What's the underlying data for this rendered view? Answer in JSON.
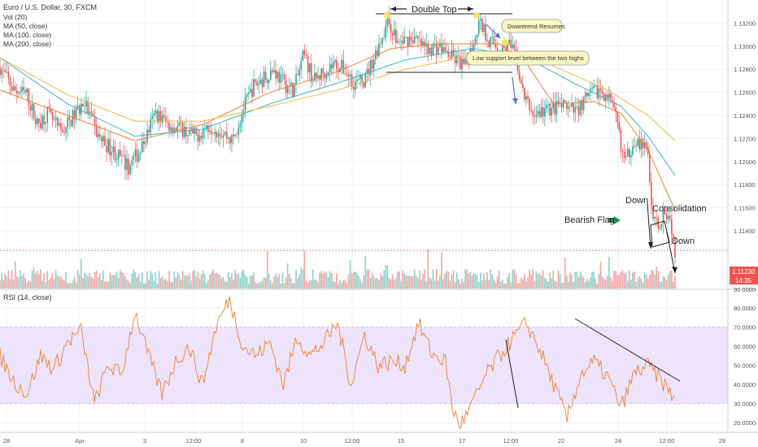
{
  "header": {
    "symbol_title": "Euro / U.S. Dollar, 30, FXCM",
    "indicators": [
      "Vol (20)",
      "MA (50, close)",
      "MA (100, close)",
      "MA (200, close)"
    ]
  },
  "rsi_header": "RSI (14, close)",
  "colors": {
    "candle_up": "#26a69a",
    "candle_down": "#ef5350",
    "vol_up": "#8fd1c9",
    "vol_down": "#f4a3a1",
    "ma50": "#f07f2e",
    "ma100": "#3bb3c3",
    "ma200": "#f5b546",
    "rsi_line": "#f07f2e",
    "rsi_band": "#ede4fb",
    "price_badge": "#ef5350",
    "grid": "#eef0f3",
    "axis_text": "#555555"
  },
  "price_badge": {
    "price": "1.11230",
    "countdown": "14:35"
  },
  "annotations": {
    "double_top": "Double Top",
    "downtrend": "Downtrend Resumes",
    "low_support": "Low support level between the two highs",
    "bearish_flag": "Bearish Flag",
    "down1": "Down",
    "consolidation": "Consolidation",
    "down2": "Down"
  },
  "chart_data": [
    {
      "type": "candlestick",
      "title": "Euro / U.S. Dollar, 30, FXCM",
      "y_ticks": [
        "1.13200",
        "1.13000",
        "1.12800",
        "1.12600",
        "1.12400",
        "1.12200",
        "1.12000",
        "1.11800",
        "1.11600",
        "1.11400"
      ],
      "ylim": [
        1.109,
        1.134
      ],
      "x_ticks": [
        "28",
        "Apr",
        "3",
        "12:00",
        "8",
        "10",
        "12:00",
        "15",
        "17",
        "12:00",
        "22",
        "24",
        "12:00",
        "29"
      ],
      "grid": true,
      "close_path": [
        [
          0,
          1.1282
        ],
        [
          0.02,
          1.1262
        ],
        [
          0.04,
          1.1258
        ],
        [
          0.055,
          1.1232
        ],
        [
          0.07,
          1.1242
        ],
        [
          0.09,
          1.1225
        ],
        [
          0.11,
          1.124
        ],
        [
          0.125,
          1.1252
        ],
        [
          0.145,
          1.1222
        ],
        [
          0.17,
          1.1208
        ],
        [
          0.19,
          1.1195
        ],
        [
          0.21,
          1.1212
        ],
        [
          0.23,
          1.1242
        ],
        [
          0.25,
          1.1232
        ],
        [
          0.27,
          1.1228
        ],
        [
          0.29,
          1.1222
        ],
        [
          0.31,
          1.1232
        ],
        [
          0.33,
          1.1225
        ],
        [
          0.345,
          1.1218
        ],
        [
          0.36,
          1.1245
        ],
        [
          0.375,
          1.1265
        ],
        [
          0.39,
          1.1272
        ],
        [
          0.405,
          1.128
        ],
        [
          0.42,
          1.1268
        ],
        [
          0.435,
          1.1262
        ],
        [
          0.45,
          1.1292
        ],
        [
          0.465,
          1.127
        ],
        [
          0.48,
          1.1278
        ],
        [
          0.495,
          1.1285
        ],
        [
          0.51,
          1.128
        ],
        [
          0.525,
          1.1268
        ],
        [
          0.54,
          1.127
        ],
        [
          0.555,
          1.1292
        ],
        [
          0.575,
          1.1322
        ],
        [
          0.59,
          1.1302
        ],
        [
          0.61,
          1.1308
        ],
        [
          0.63,
          1.1298
        ],
        [
          0.65,
          1.13
        ],
        [
          0.67,
          1.129
        ],
        [
          0.69,
          1.1282
        ],
        [
          0.71,
          1.1322
        ],
        [
          0.725,
          1.1305
        ],
        [
          0.74,
          1.1298
        ],
        [
          0.755,
          1.13
        ],
        [
          0.765,
          1.1288
        ],
        [
          0.775,
          1.1258
        ],
        [
          0.79,
          1.124
        ],
        [
          0.81,
          1.1245
        ],
        [
          0.83,
          1.1248
        ],
        [
          0.85,
          1.1243
        ],
        [
          0.87,
          1.1255
        ],
        [
          0.885,
          1.1262
        ],
        [
          0.9,
          1.1258
        ],
        [
          0.915,
          1.1232
        ],
        [
          0.925,
          1.1198
        ],
        [
          0.94,
          1.122
        ],
        [
          0.96,
          1.1208
        ],
        [
          0.965,
          1.116
        ],
        [
          0.975,
          1.1145
        ],
        [
          0.985,
          1.116
        ],
        [
          0.993,
          1.115
        ],
        [
          1,
          1.1123
        ]
      ],
      "moving_averages": [
        {
          "name": "MA (50, close)",
          "path": [
            [
              0,
              1.1262
            ],
            [
              0.1,
              1.124
            ],
            [
              0.2,
              1.1218
            ],
            [
              0.3,
              1.1232
            ],
            [
              0.4,
              1.126
            ],
            [
              0.5,
              1.1278
            ],
            [
              0.58,
              1.1298
            ],
            [
              0.65,
              1.1302
            ],
            [
              0.74,
              1.1302
            ],
            [
              0.78,
              1.1285
            ],
            [
              0.82,
              1.125
            ],
            [
              0.88,
              1.1252
            ],
            [
              0.92,
              1.1242
            ],
            [
              0.96,
              1.121
            ],
            [
              1,
              1.1158
            ]
          ]
        },
        {
          "name": "MA (100, close)",
          "path": [
            [
              0,
              1.129
            ],
            [
              0.1,
              1.125
            ],
            [
              0.2,
              1.1222
            ],
            [
              0.3,
              1.1228
            ],
            [
              0.4,
              1.125
            ],
            [
              0.5,
              1.1268
            ],
            [
              0.6,
              1.1288
            ],
            [
              0.7,
              1.1298
            ],
            [
              0.78,
              1.129
            ],
            [
              0.85,
              1.1268
            ],
            [
              0.92,
              1.1248
            ],
            [
              0.96,
              1.1222
            ],
            [
              1,
              1.1188
            ]
          ]
        },
        {
          "name": "MA (200, close)",
          "path": [
            [
              0,
              1.129
            ],
            [
              0.1,
              1.1258
            ],
            [
              0.2,
              1.1235
            ],
            [
              0.3,
              1.1235
            ],
            [
              0.4,
              1.1248
            ],
            [
              0.5,
              1.1262
            ],
            [
              0.6,
              1.128
            ],
            [
              0.7,
              1.1292
            ],
            [
              0.8,
              1.1288
            ],
            [
              0.9,
              1.1262
            ],
            [
              0.96,
              1.124
            ],
            [
              1,
              1.1218
            ]
          ]
        }
      ]
    },
    {
      "type": "line",
      "title": "RSI (14, close)",
      "y_ticks": [
        "80.0000",
        "70.0000",
        "60.0000",
        "50.0000",
        "40.0000",
        "30.0000",
        "20.0000"
      ],
      "ylim": [
        15,
        88
      ],
      "band": [
        30,
        70
      ],
      "path": [
        [
          0,
          55
        ],
        [
          0.02,
          42
        ],
        [
          0.04,
          35
        ],
        [
          0.06,
          55
        ],
        [
          0.08,
          48
        ],
        [
          0.1,
          62
        ],
        [
          0.12,
          68
        ],
        [
          0.14,
          30
        ],
        [
          0.16,
          50
        ],
        [
          0.18,
          45
        ],
        [
          0.2,
          78
        ],
        [
          0.22,
          55
        ],
        [
          0.24,
          35
        ],
        [
          0.26,
          52
        ],
        [
          0.28,
          60
        ],
        [
          0.3,
          40
        ],
        [
          0.32,
          70
        ],
        [
          0.34,
          85
        ],
        [
          0.36,
          60
        ],
        [
          0.38,
          55
        ],
        [
          0.4,
          62
        ],
        [
          0.42,
          40
        ],
        [
          0.44,
          65
        ],
        [
          0.46,
          55
        ],
        [
          0.48,
          62
        ],
        [
          0.5,
          72
        ],
        [
          0.52,
          40
        ],
        [
          0.54,
          66
        ],
        [
          0.56,
          50
        ],
        [
          0.58,
          52
        ],
        [
          0.6,
          50
        ],
        [
          0.62,
          72
        ],
        [
          0.64,
          56
        ],
        [
          0.66,
          52
        ],
        [
          0.67,
          28
        ],
        [
          0.68,
          19
        ],
        [
          0.69,
          23
        ],
        [
          0.7,
          30
        ],
        [
          0.72,
          45
        ],
        [
          0.74,
          55
        ],
        [
          0.76,
          64
        ],
        [
          0.78,
          72
        ],
        [
          0.8,
          58
        ],
        [
          0.82,
          40
        ],
        [
          0.84,
          22
        ],
        [
          0.86,
          45
        ],
        [
          0.88,
          52
        ],
        [
          0.9,
          44
        ],
        [
          0.92,
          28
        ],
        [
          0.94,
          46
        ],
        [
          0.96,
          50
        ],
        [
          0.98,
          42
        ],
        [
          1,
          32
        ]
      ]
    }
  ]
}
